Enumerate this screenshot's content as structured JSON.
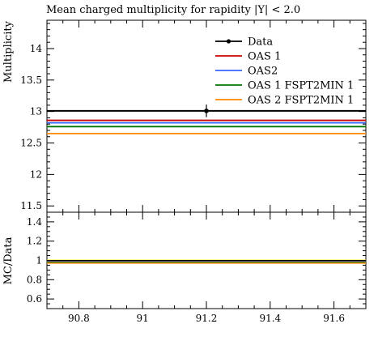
{
  "chart_data": {
    "type": "line",
    "title": "Mean charged multiplicity for rapidity |Y| < 2.0",
    "ylabel": "Multiplicity",
    "ratio_ylabel": "MC/Data",
    "xlim": [
      90.7,
      91.7
    ],
    "ylim": [
      11.4,
      14.45
    ],
    "ratio_ylim": [
      0.5,
      1.5
    ],
    "x_ticks": [
      90.8,
      91,
      91.2,
      91.4,
      91.6
    ],
    "x_tick_labels": [
      "90.8",
      "91",
      "91.2",
      "91.4",
      "91.6"
    ],
    "y_ticks": [
      11.5,
      12,
      12.5,
      13,
      13.5,
      14
    ],
    "y_tick_labels": [
      "11.5",
      "12",
      "12.5",
      "13",
      "13.5",
      "14"
    ],
    "ratio_y_ticks": [
      0.6,
      0.8,
      1,
      1.2,
      1.4
    ],
    "ratio_y_tick_labels": [
      "0.6",
      "0.8",
      "1",
      "1.2",
      "1.4"
    ],
    "data": {
      "name": "Data",
      "x": 91.2,
      "x_low": 90.7,
      "x_high": 91.7,
      "y": 13.01,
      "yerr": 0.1,
      "color": "#000000"
    },
    "series": [
      {
        "name": "OAS 1",
        "color": "#cc0000",
        "y": 12.86,
        "ratio": 0.988
      },
      {
        "name": "OAS2",
        "color": "#3366ff",
        "y": 12.82,
        "ratio": 0.985
      },
      {
        "name": "OAS 1 FSPT2MIN 1",
        "color": "#007700",
        "y": 12.76,
        "ratio": 0.981
      },
      {
        "name": "OAS 2 FSPT2MIN 1",
        "color": "#ff8800",
        "y": 12.65,
        "ratio": 0.972
      }
    ],
    "ratio_band": {
      "low": 0.992,
      "high": 1.008,
      "color": "#ffee00"
    },
    "legend_position": "top-right",
    "grid": false
  }
}
